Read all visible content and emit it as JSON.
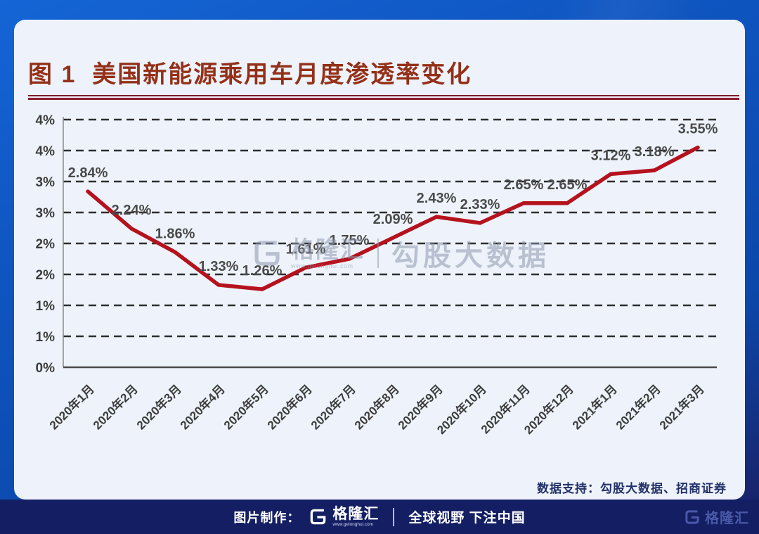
{
  "header": {
    "title": "图 1  美国新能源乘用车月度渗透率变化"
  },
  "chart_data": {
    "type": "line",
    "title": "美国新能源乘用车月度渗透率变化",
    "categories": [
      "2020年1月",
      "2020年2月",
      "2020年3月",
      "2020年4月",
      "2020年5月",
      "2020年6月",
      "2020年7月",
      "2020年8月",
      "2020年9月",
      "2020年10月",
      "2020年11月",
      "2020年12月",
      "2021年1月",
      "2021年2月",
      "2021年3月"
    ],
    "values": [
      2.84,
      2.24,
      1.86,
      1.33,
      1.26,
      1.61,
      1.75,
      2.09,
      2.43,
      2.33,
      2.65,
      2.65,
      3.12,
      3.18,
      3.55
    ],
    "data_labels": [
      "2.84%",
      "2.24%",
      "1.86%",
      "1.33%",
      "1.26%",
      "1.61%",
      "1.75%",
      "2.09%",
      "2.43%",
      "2.33%",
      "2.65%",
      "2.65%",
      "3.12%",
      "3.18%",
      "3.55%"
    ],
    "ylim": [
      0,
      4
    ],
    "y_tick_values": [
      0,
      0.5,
      1,
      1.5,
      2,
      2.5,
      3,
      3.5,
      4
    ],
    "y_tick_labels": [
      "0%",
      "1%",
      "1%",
      "2%",
      "2%",
      "3%",
      "3%",
      "4%",
      "4%"
    ],
    "xlabel": "",
    "ylabel": "",
    "grid": "dashed-horizontal",
    "legend": "none",
    "line_color": "#b5121e",
    "grid_color": "#2e2e2e",
    "axis_color": "#4a4a4a"
  },
  "watermark": {
    "logo": "gelonghui-g",
    "brand": "格隆汇",
    "brand_url": "www.gelonghui.com",
    "text": "勾股大数据"
  },
  "support": {
    "text": "数据支持：勾股大数据、招商证券"
  },
  "footer": {
    "made_by": "图片制作：",
    "brand": "格隆汇",
    "brand_url": "www.gelonghui.com",
    "slogan": "全球视野 下注中国",
    "brand_right": "格隆汇"
  },
  "colors": {
    "background_top": "#1565d6",
    "background_bottom": "#141f63",
    "card_background": "#eef3fb",
    "title_text": "#943018",
    "title_rule": "#8c1e31",
    "line": "#b5121e",
    "footer_bar": "#141f63",
    "support_text": "#233069"
  }
}
